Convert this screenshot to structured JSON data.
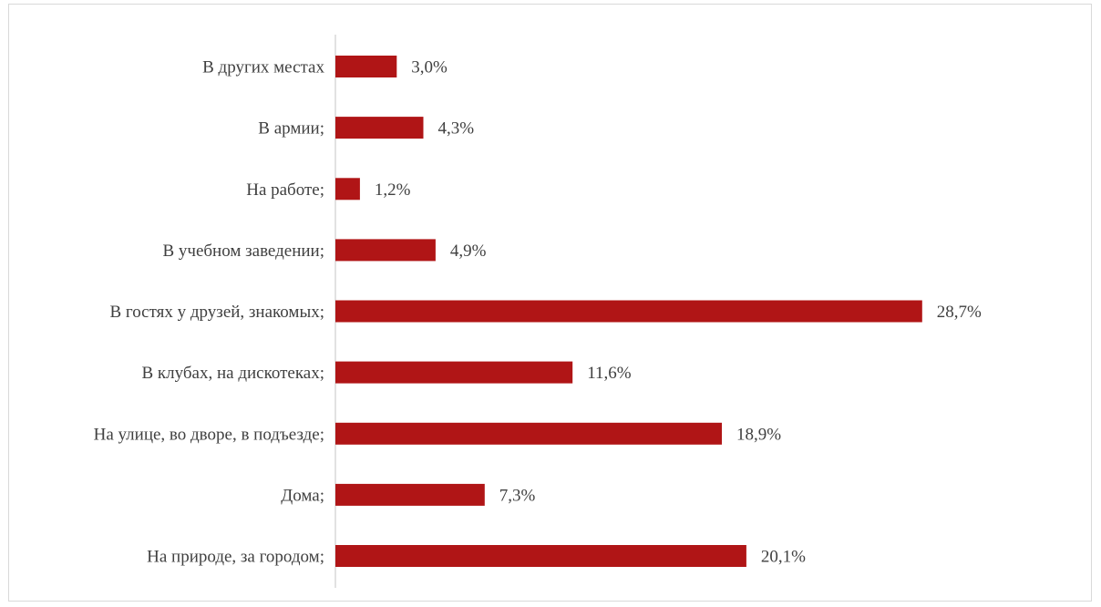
{
  "chart_data": {
    "type": "bar",
    "orientation": "horizontal",
    "categories": [
      "В других местах",
      "В армии;",
      "На работе;",
      "В учебном заведении;",
      "В гостях у друзей, знакомых;",
      "В клубах, на дискотеках;",
      "На улице, во дворе, в подъезде;",
      "Дома;",
      "На природе, за городом;"
    ],
    "values": [
      3.0,
      4.3,
      1.2,
      4.9,
      28.7,
      11.6,
      18.9,
      7.3,
      20.1
    ],
    "value_labels": [
      "3,0%",
      "4,3%",
      "1,2%",
      "4,9%",
      "28,7%",
      "11,6%",
      "18,9%",
      "7,3%",
      "20,1%"
    ],
    "xlim": [
      0,
      30
    ],
    "grid": false,
    "bar_color": "#b01516",
    "axis_color": "#d9d9d9"
  }
}
